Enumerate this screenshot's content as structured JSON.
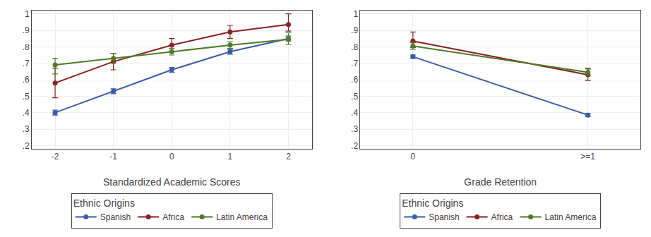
{
  "chart_data": [
    {
      "type": "line",
      "xlabel": "Standardized Academic Scores",
      "x": [
        -2,
        -1,
        0,
        1,
        2
      ],
      "xlim": [
        -2.4,
        2.4
      ],
      "xticks": [
        -2,
        -1,
        0,
        1,
        2
      ],
      "ylim": [
        0.18,
        1.02
      ],
      "yticks": [
        {
          "value": 0.2,
          "label": ".2"
        },
        {
          "value": 0.3,
          "label": ".3"
        },
        {
          "value": 0.4,
          "label": ".4"
        },
        {
          "value": 0.5,
          "label": ".5"
        },
        {
          "value": 0.6,
          "label": ".6"
        },
        {
          "value": 0.7,
          "label": ".7"
        },
        {
          "value": 0.8,
          "label": ".8"
        },
        {
          "value": 0.9,
          "label": ".9"
        },
        1
      ],
      "grid": true,
      "legend": "bottom",
      "legend_title": "Ethnic Origins",
      "series": [
        {
          "name": "Spanish",
          "color": "#3a5ca8",
          "marker": "circle",
          "values": [
            0.4,
            0.53,
            0.66,
            0.77,
            0.85
          ],
          "yerr_lo": [
            0.015,
            0.015,
            0.015,
            0.015,
            0.015
          ],
          "yerr_hi": [
            0.015,
            0.015,
            0.015,
            0.015,
            0.015
          ]
        },
        {
          "name": "Africa",
          "color": "#8b2020",
          "marker": "circle",
          "values": [
            0.58,
            0.71,
            0.81,
            0.89,
            0.935
          ],
          "yerr_lo": [
            0.09,
            0.05,
            0.04,
            0.04,
            0.04
          ],
          "yerr_hi": [
            0.09,
            0.05,
            0.04,
            0.04,
            0.065
          ]
        },
        {
          "name": "Latin America",
          "color": "#4f7a28",
          "marker": "circle",
          "values": [
            0.69,
            0.73,
            0.77,
            0.81,
            0.845
          ],
          "yerr_lo": [
            0.055,
            0.03,
            0.02,
            0.02,
            0.03
          ],
          "yerr_hi": [
            0.04,
            0.03,
            0.02,
            0.02,
            0.04
          ]
        }
      ]
    },
    {
      "type": "line",
      "xlabel": "Grade Retention",
      "x": [
        0,
        1
      ],
      "xlim": [
        -0.3,
        1.3
      ],
      "xticks": [
        0,
        {
          "value": 1,
          "label": ">=1"
        }
      ],
      "ylim": [
        0.18,
        1.02
      ],
      "yticks": [
        {
          "value": 0.2,
          "label": ".2"
        },
        {
          "value": 0.3,
          "label": ".3"
        },
        {
          "value": 0.4,
          "label": ".4"
        },
        {
          "value": 0.5,
          "label": ".5"
        },
        {
          "value": 0.6,
          "label": ".6"
        },
        {
          "value": 0.7,
          "label": ".7"
        },
        {
          "value": 0.8,
          "label": ".8"
        },
        {
          "value": 0.9,
          "label": ".9"
        },
        1
      ],
      "grid": true,
      "legend": "bottom",
      "legend_title": "Ethnic Origins",
      "series": [
        {
          "name": "Spanish",
          "color": "#3a5ca8",
          "marker": "circle",
          "values": [
            0.74,
            0.385
          ],
          "yerr_lo": [
            0.01,
            0.01
          ],
          "yerr_hi": [
            0.01,
            0.01
          ]
        },
        {
          "name": "Africa",
          "color": "#8b2020",
          "marker": "circle",
          "values": [
            0.835,
            0.63
          ],
          "yerr_lo": [
            0.04,
            0.035
          ],
          "yerr_hi": [
            0.055,
            0.04
          ]
        },
        {
          "name": "Latin America",
          "color": "#4f7a28",
          "marker": "circle",
          "values": [
            0.805,
            0.645
          ],
          "yerr_lo": [
            0.02,
            0.02
          ],
          "yerr_hi": [
            0.02,
            0.02
          ]
        }
      ]
    }
  ]
}
